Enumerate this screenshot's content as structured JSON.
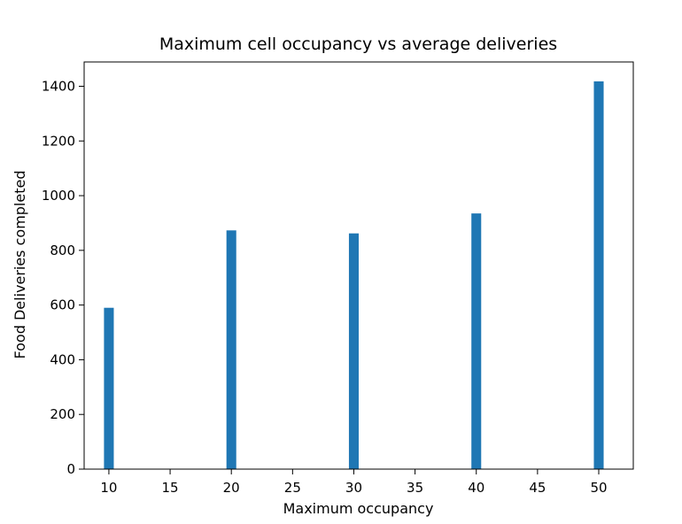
{
  "chart_data": {
    "type": "bar",
    "title": "Maximum cell occupancy vs average deliveries",
    "xlabel": "Maximum occupancy",
    "ylabel": "Food Deliveries completed",
    "x": [
      10,
      20,
      30,
      40,
      50
    ],
    "values": [
      590,
      873,
      862,
      935,
      1418
    ],
    "bar_width": 0.8,
    "xlim": [
      7.98,
      52.82
    ],
    "ylim": [
      0,
      1488.9
    ],
    "xticks": [
      10,
      15,
      20,
      25,
      30,
      35,
      40,
      45,
      50
    ],
    "yticks": [
      0,
      200,
      400,
      600,
      800,
      1000,
      1200,
      1400
    ],
    "grid": false,
    "bar_color": "#1f77b4"
  }
}
